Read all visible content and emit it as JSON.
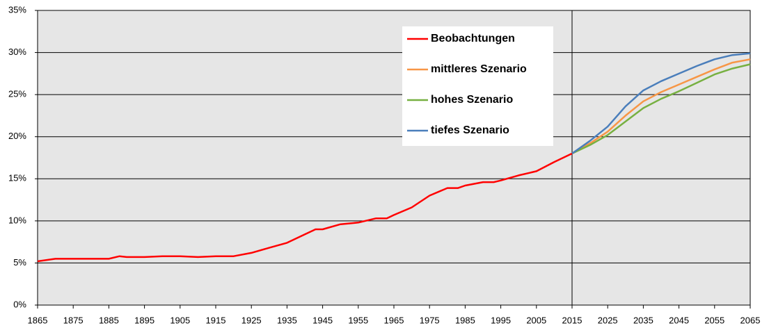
{
  "chart_data": {
    "type": "line",
    "xlim": [
      1865,
      2065
    ],
    "xticks": [
      1865,
      1875,
      1885,
      1895,
      1905,
      1915,
      1925,
      1935,
      1945,
      1955,
      1965,
      1975,
      1985,
      1995,
      2005,
      2015,
      2025,
      2035,
      2045,
      2055,
      2065
    ],
    "ylim": [
      0,
      35
    ],
    "yticks": [
      {
        "value": 0,
        "label": "0%"
      },
      {
        "value": 5,
        "label": "5%"
      },
      {
        "value": 10,
        "label": "10%"
      },
      {
        "value": 15,
        "label": "15%"
      },
      {
        "value": 20,
        "label": "20%"
      },
      {
        "value": 25,
        "label": "25%"
      },
      {
        "value": 30,
        "label": "30%"
      },
      {
        "value": 35,
        "label": "35%"
      }
    ],
    "grid": true,
    "legend": "top",
    "reference_line": {
      "x": 2015
    },
    "series": [
      {
        "name": "Beobachtungen",
        "color": "#ff0000",
        "x": [
          1865,
          1870,
          1875,
          1880,
          1885,
          1888,
          1890,
          1895,
          1900,
          1905,
          1910,
          1915,
          1920,
          1925,
          1930,
          1935,
          1940,
          1943,
          1945,
          1950,
          1955,
          1960,
          1963,
          1965,
          1970,
          1975,
          1980,
          1983,
          1985,
          1990,
          1993,
          1995,
          2000,
          2005,
          2010,
          2015
        ],
        "values": [
          5.2,
          5.5,
          5.5,
          5.5,
          5.5,
          5.8,
          5.7,
          5.7,
          5.8,
          5.8,
          5.7,
          5.8,
          5.8,
          6.2,
          6.8,
          7.4,
          8.4,
          9.0,
          9.0,
          9.6,
          9.8,
          10.3,
          10.3,
          10.7,
          11.6,
          13.0,
          13.9,
          13.9,
          14.2,
          14.6,
          14.6,
          14.8,
          15.4,
          15.9,
          17.0,
          18.0
        ]
      },
      {
        "name": "mittleres Szenario",
        "color": "#f79646",
        "x": [
          2015,
          2020,
          2025,
          2030,
          2035,
          2040,
          2045,
          2050,
          2055,
          2060,
          2065
        ],
        "values": [
          18.0,
          19.2,
          20.6,
          22.5,
          24.2,
          25.3,
          26.2,
          27.1,
          28.0,
          28.8,
          29.2
        ]
      },
      {
        "name": "hohes Szenario",
        "color": "#77b041",
        "x": [
          2015,
          2020,
          2025,
          2030,
          2035,
          2040,
          2045,
          2050,
          2055,
          2060,
          2065
        ],
        "values": [
          18.0,
          19.0,
          20.2,
          21.8,
          23.4,
          24.5,
          25.4,
          26.4,
          27.4,
          28.1,
          28.6
        ]
      },
      {
        "name": "tiefes Szenario",
        "color": "#4a7ebb",
        "x": [
          2015,
          2020,
          2025,
          2030,
          2035,
          2040,
          2045,
          2050,
          2055,
          2060,
          2065
        ],
        "values": [
          18.0,
          19.5,
          21.2,
          23.6,
          25.5,
          26.6,
          27.5,
          28.4,
          29.2,
          29.7,
          29.9
        ]
      }
    ]
  }
}
